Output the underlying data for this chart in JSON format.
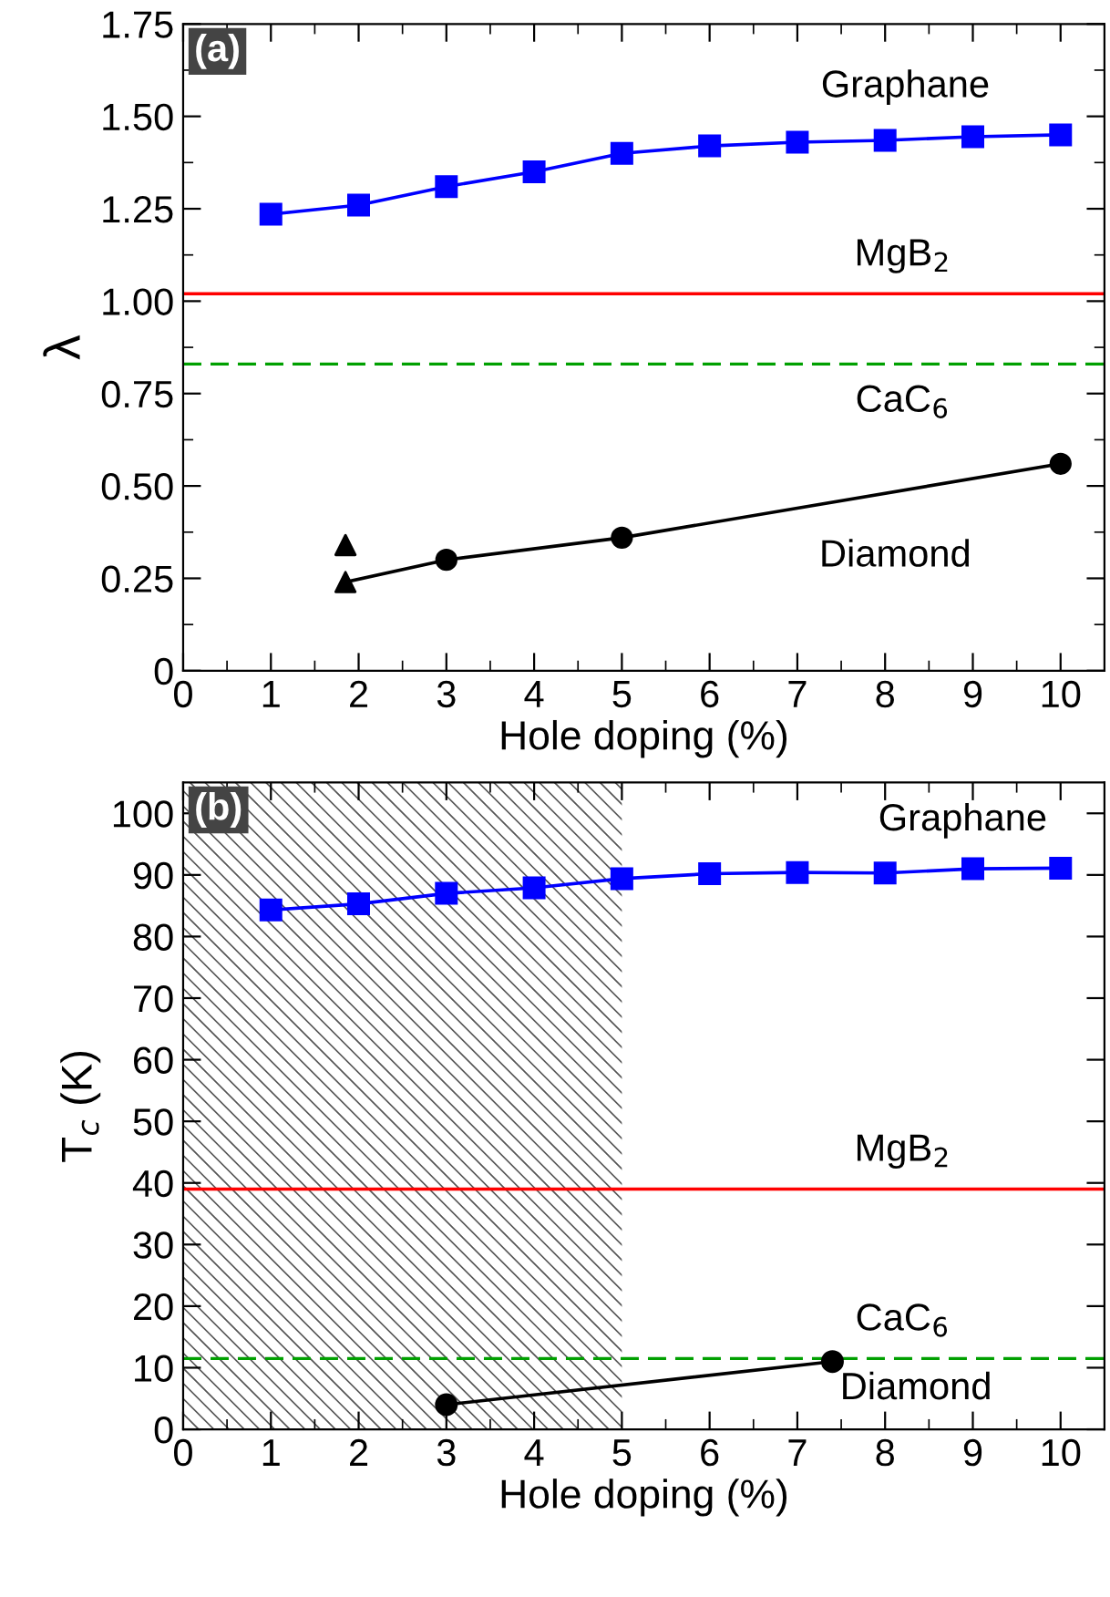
{
  "chart_data": [
    {
      "type": "line",
      "xlabel": "Hole doping (%)",
      "ylabel": "λ",
      "xlim": [
        0,
        10.5
      ],
      "xticks": [
        0,
        1,
        2,
        3,
        4,
        5,
        6,
        7,
        8,
        9,
        10
      ],
      "ylim": [
        0,
        1.75
      ],
      "yticks": [
        0,
        {
          "value": 0.25,
          "label": "0.25"
        },
        {
          "value": 0.5,
          "label": "0.50"
        },
        {
          "value": 0.75,
          "label": "0.75"
        },
        {
          "value": 1.0,
          "label": "1.00"
        },
        {
          "value": 1.25,
          "label": "1.25"
        },
        {
          "value": 1.5,
          "label": "1.50"
        },
        {
          "value": 1.75,
          "label": "1.75"
        }
      ],
      "grid": false,
      "annotations": [
        "(a)",
        {
          "text": "Graphane",
          "x": 8,
          "y": 1.435
        },
        {
          "text": "Diamond",
          "x": 8,
          "y": 0.48
        }
      ],
      "series": [
        {
          "color": "#0000ff",
          "marker": "square",
          "x": [
            1,
            2,
            3,
            4,
            5,
            6,
            7,
            8,
            9,
            10
          ],
          "values": [
            1.235,
            1.26,
            1.31,
            1.35,
            1.4,
            1.42,
            1.43,
            1.435,
            1.445,
            1.45
          ]
        },
        {
          "color": "#000000",
          "marker": "none",
          "x": [
            1.85,
            3,
            5,
            10
          ],
          "values": [
            0.24,
            0.3,
            0.36,
            0.56
          ]
        },
        {
          "type": "scatter",
          "color": "#000000",
          "marker": "triangle",
          "x": [
            1.85,
            1.85
          ],
          "values": [
            0.34,
            0.24
          ]
        },
        {
          "type": "scatter",
          "color": "#000000",
          "marker": "circle",
          "x": [
            3,
            5,
            10
          ],
          "values": [
            0.3,
            0.36,
            0.56
          ]
        }
      ],
      "ref_lines": [
        {
          "axis": "y",
          "value": 1.02,
          "label": "MgB$_{2}$",
          "color": "#ff0000",
          "line_style": "solid"
        },
        {
          "axis": "y",
          "value": 0.83,
          "label": "CaC$_{6}$",
          "color": "#00a000",
          "line_style": "dashed"
        }
      ]
    },
    {
      "type": "line",
      "xlabel": "Hole doping (%)",
      "ylabel": "T$_{c}$ (K)",
      "xlim": [
        0,
        10.5
      ],
      "xticks": [
        0,
        1,
        2,
        3,
        4,
        5,
        6,
        7,
        8,
        9,
        10
      ],
      "ylim": [
        0,
        105
      ],
      "yticks": [
        0,
        10,
        20,
        30,
        40,
        50,
        60,
        70,
        80,
        90,
        100
      ],
      "grid": false,
      "annotations": [
        "(b)",
        {
          "text": "Graphane",
          "x": 9,
          "y": 91.0
        },
        {
          "text": "Diamond",
          "x": 7.4,
          "y": 11
        }
      ],
      "series": [
        {
          "color": "#0000ff",
          "marker": "square",
          "x": [
            1,
            2,
            3,
            4,
            5,
            6,
            7,
            8,
            9,
            10
          ],
          "values": [
            84.3,
            85.3,
            87.0,
            87.9,
            89.4,
            90.2,
            90.4,
            90.3,
            91.0,
            91.1
          ]
        },
        {
          "color": "#000000",
          "marker": "circle",
          "x": [
            3,
            7.4
          ],
          "values": [
            4,
            11
          ]
        }
      ],
      "ref_lines": [
        {
          "axis": "y",
          "value": 39,
          "label": "MgB$_{2}$",
          "color": "#ff0000",
          "line_style": "solid"
        },
        {
          "axis": "y",
          "value": 11.5,
          "label": "CaC$_{6}$",
          "color": "#00a000",
          "line_style": "dashed"
        }
      ],
      "bands": [
        {
          "axis": "x",
          "from": 0,
          "to": 5,
          "color": "#555555"
        }
      ]
    }
  ]
}
